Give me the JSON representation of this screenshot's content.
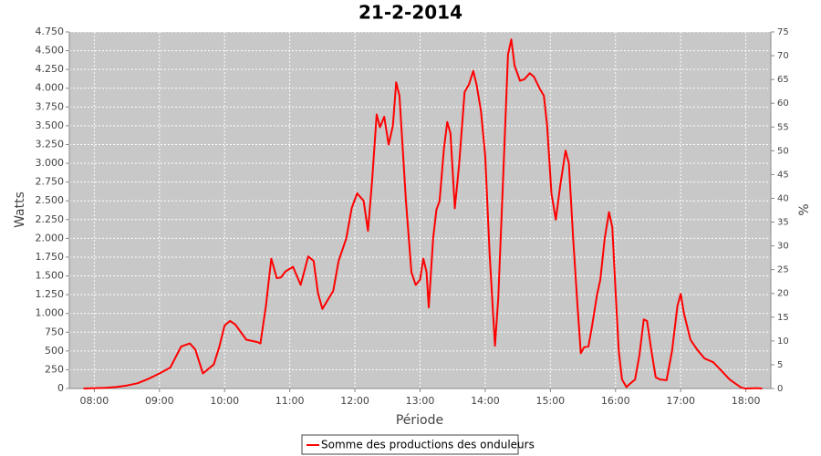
{
  "chart_data": {
    "type": "line",
    "title": "21-2-2014",
    "xlabel": "Période",
    "ylabel": "Watts",
    "y2label": "%",
    "x": [
      "07:50",
      "08:00",
      "08:10",
      "08:20",
      "08:30",
      "08:40",
      "08:50",
      "09:00",
      "09:10",
      "09:20",
      "09:28",
      "09:33",
      "09:40",
      "09:50",
      "09:55",
      "10:00",
      "10:05",
      "10:10",
      "10:20",
      "10:30",
      "10:33",
      "10:38",
      "10:43",
      "10:48",
      "10:52",
      "10:56",
      "11:03",
      "11:10",
      "11:17",
      "11:22",
      "11:26",
      "11:30",
      "11:40",
      "11:45",
      "11:52",
      "11:57",
      "12:02",
      "12:08",
      "12:12",
      "12:16",
      "12:20",
      "12:23",
      "12:27",
      "12:31",
      "12:35",
      "12:38",
      "12:41",
      "12:47",
      "12:52",
      "12:56",
      "13:00",
      "13:03",
      "13:06",
      "13:08",
      "13:12",
      "13:15",
      "13:18",
      "13:22",
      "13:25",
      "13:28",
      "13:32",
      "13:36",
      "13:41",
      "13:45",
      "13:49",
      "13:52",
      "13:56",
      "14:00",
      "14:04",
      "14:09",
      "14:12",
      "14:17",
      "14:21",
      "14:24",
      "14:27",
      "14:32",
      "14:36",
      "14:41",
      "14:45",
      "14:50",
      "14:54",
      "14:57",
      "15:01",
      "15:05",
      "15:09",
      "15:14",
      "15:17",
      "15:21",
      "15:25",
      "15:28",
      "15:31",
      "15:35",
      "15:38",
      "15:43",
      "15:46",
      "15:50",
      "15:54",
      "15:57",
      "16:00",
      "16:03",
      "16:06",
      "16:10",
      "16:13",
      "16:18",
      "16:22",
      "16:26",
      "16:29",
      "16:33",
      "16:37",
      "16:41",
      "16:47",
      "16:52",
      "16:57",
      "17:00",
      "17:03",
      "17:09",
      "17:15",
      "17:22",
      "17:30",
      "17:38",
      "17:45",
      "17:52",
      "17:56",
      "18:00",
      "18:10",
      "18:15"
    ],
    "series": [
      {
        "name": "Somme des productions des onduleurs",
        "color": "#ff0000",
        "values": [
          0,
          5,
          10,
          20,
          40,
          70,
          130,
          200,
          280,
          560,
          600,
          520,
          200,
          320,
          550,
          840,
          900,
          850,
          650,
          620,
          600,
          1100,
          1730,
          1470,
          1480,
          1560,
          1620,
          1380,
          1760,
          1700,
          1270,
          1060,
          1300,
          1700,
          2000,
          2400,
          2600,
          2500,
          2100,
          2800,
          3650,
          3480,
          3620,
          3250,
          3500,
          4080,
          3900,
          2500,
          1550,
          1380,
          1450,
          1730,
          1550,
          1080,
          2000,
          2380,
          2500,
          3200,
          3550,
          3400,
          2400,
          3000,
          3950,
          4050,
          4230,
          4050,
          3700,
          3100,
          1800,
          570,
          1200,
          3000,
          4450,
          4650,
          4300,
          4100,
          4120,
          4200,
          4150,
          4000,
          3900,
          3500,
          2600,
          2250,
          2700,
          3170,
          3000,
          2000,
          1100,
          470,
          550,
          560,
          800,
          1250,
          1450,
          2000,
          2350,
          2150,
          1300,
          500,
          120,
          20,
          60,
          120,
          450,
          920,
          900,
          500,
          150,
          120,
          110,
          500,
          1100,
          1260,
          1000,
          650,
          520,
          400,
          350,
          230,
          120,
          50,
          10,
          0,
          5,
          0
        ]
      }
    ],
    "xlim": [
      "07:37",
      "18:23"
    ],
    "xticks": [
      "08:00",
      "09:00",
      "10:00",
      "11:00",
      "12:00",
      "13:00",
      "14:00",
      "15:00",
      "16:00",
      "17:00",
      "18:00"
    ],
    "ylim": [
      0,
      4750
    ],
    "yticks": [
      0,
      250,
      500,
      750,
      {
        "value": 1000,
        "label": "1.000"
      },
      {
        "value": 1250,
        "label": "1.250"
      },
      {
        "value": 1500,
        "label": "1.500"
      },
      {
        "value": 1750,
        "label": "1.750"
      },
      {
        "value": 2000,
        "label": "2.000"
      },
      {
        "value": 2250,
        "label": "2.250"
      },
      {
        "value": 2500,
        "label": "2.500"
      },
      {
        "value": 2750,
        "label": "2.750"
      },
      {
        "value": 3000,
        "label": "3.000"
      },
      {
        "value": 3250,
        "label": "3.250"
      },
      {
        "value": 3500,
        "label": "3.500"
      },
      {
        "value": 3750,
        "label": "3.750"
      },
      {
        "value": 4000,
        "label": "4.000"
      },
      {
        "value": 4250,
        "label": "4.250"
      },
      {
        "value": 4500,
        "label": "4.500"
      },
      {
        "value": 4750,
        "label": "4.750"
      }
    ],
    "y2lim": [
      0,
      75
    ],
    "y2ticks": [
      0,
      5,
      10,
      15,
      20,
      25,
      30,
      35,
      40,
      45,
      50,
      55,
      60,
      65,
      70,
      75
    ],
    "grid": true,
    "legend": "bottom"
  }
}
